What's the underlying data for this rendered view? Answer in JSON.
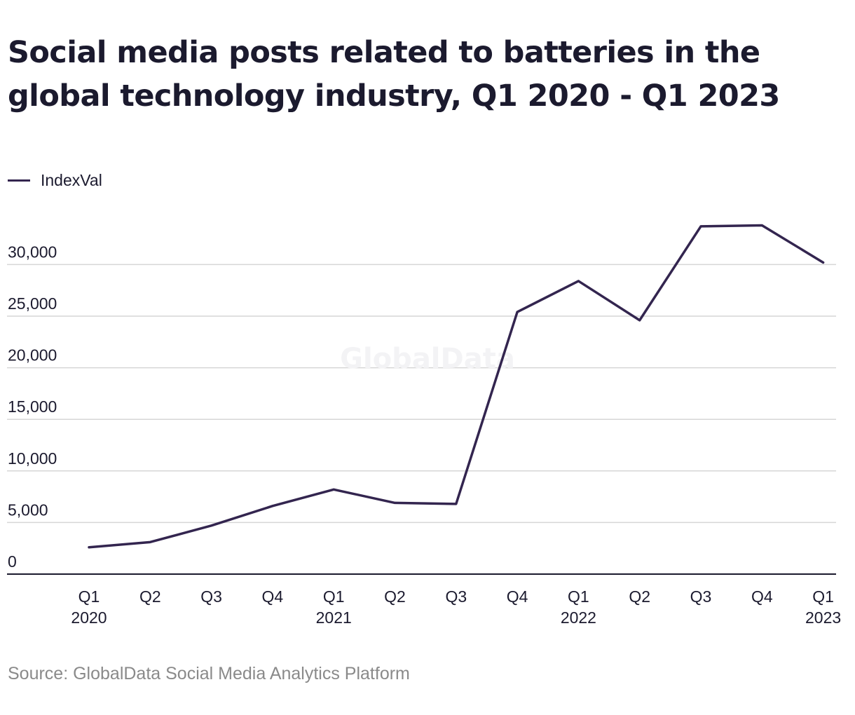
{
  "title": "Social media posts related to batteries in the global technology industry, Q1 2020 - Q1 2023",
  "source": "Source: GlobalData Social Media Analytics Platform",
  "watermark": "GlobalData",
  "colors": {
    "line": "#33254f",
    "grid": "#d6d6d6",
    "axis": "#1b1a2e",
    "title": "#1b1a2e",
    "source": "#8a8a8a"
  },
  "chart_data": {
    "type": "line",
    "title": "Social media posts related to batteries in the global technology industry, Q1 2020 - Q1 2023",
    "xlabel": "",
    "ylabel": "",
    "legend_position": "top-left",
    "grid": true,
    "categories": [
      [
        "Q1",
        "2020"
      ],
      [
        "Q2",
        ""
      ],
      [
        "Q3",
        ""
      ],
      [
        "Q4",
        ""
      ],
      [
        "Q1",
        "2021"
      ],
      [
        "Q2",
        ""
      ],
      [
        "Q3",
        ""
      ],
      [
        "Q4",
        ""
      ],
      [
        "Q1",
        "2022"
      ],
      [
        "Q2",
        ""
      ],
      [
        "Q3",
        ""
      ],
      [
        "Q4",
        ""
      ],
      [
        "Q1",
        "2023"
      ]
    ],
    "yticks": [
      0,
      5000,
      10000,
      15000,
      20000,
      25000,
      30000
    ],
    "ytick_labels": [
      "0",
      "5,000",
      "10,000",
      "15,000",
      "20,000",
      "25,000",
      "30,000"
    ],
    "ylim": [
      0,
      30000
    ],
    "series": [
      {
        "name": "IndexVal",
        "values": [
          2600,
          3100,
          4700,
          6600,
          8200,
          6900,
          6800,
          25400,
          28400,
          24600,
          33700,
          33800,
          30200
        ]
      }
    ]
  }
}
